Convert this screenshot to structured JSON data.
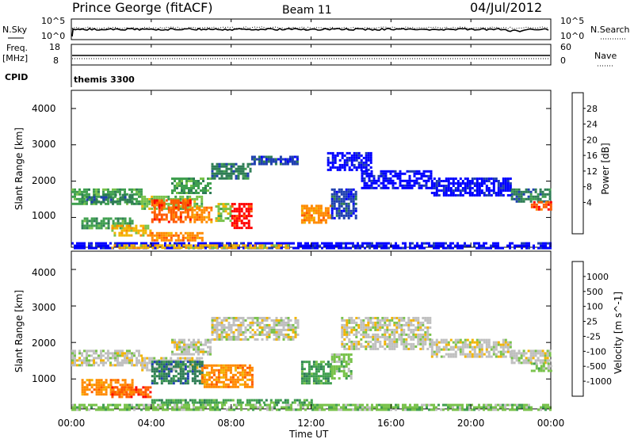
{
  "header": {
    "station": "Prince George (fitACF)",
    "beam": "Beam 11",
    "date": "04/Jul/2012"
  },
  "panels": {
    "nsky": {
      "left_label": "N.Sky",
      "left_ticks": [
        "10^5",
        "10^0"
      ],
      "right_label": "N.Search",
      "right_ticks": [
        "10^5",
        "10^0"
      ]
    },
    "freq": {
      "left_label_1": "Freq.",
      "left_label_2": "[MHz]",
      "left_ticks": [
        "18",
        "8"
      ],
      "right_label": "Nave",
      "right_ticks": [
        "60",
        "0"
      ]
    },
    "cpid": {
      "label": "CPID",
      "value": "themis 3300"
    }
  },
  "colorbars": {
    "power": {
      "title": "Power [dB]",
      "ticks": [
        "28",
        "24",
        "20",
        "16",
        "12",
        "8",
        "4"
      ],
      "colors": [
        "#0000ff",
        "#1f3fb0",
        "#2e7d55",
        "#3f9f4f",
        "#78c24a",
        "#f2b400",
        "#ff8a00",
        "#ff5a00",
        "#ff0000"
      ]
    },
    "velocity": {
      "title": "Velocity [m s^-1]",
      "ticks": [
        "1000",
        "500",
        "100",
        "25",
        "-25",
        "-100",
        "-500",
        "-1000"
      ],
      "colors": [
        "#1f3fb0",
        "#2e7d55",
        "#3f9f4f",
        "#78c24a",
        "#bfbfbf",
        "#f2b400",
        "#ff8a00",
        "#ff5a00",
        "#ff0000"
      ]
    }
  },
  "chart_data": [
    {
      "type": "heatmap",
      "name": "power",
      "ylabel": "Slant Range [km]",
      "yticks": [
        "4000",
        "3000",
        "2000",
        "1000"
      ],
      "ylim": [
        180,
        4500
      ],
      "xlim": [
        0,
        24
      ],
      "bands": [
        {
          "x0": 0.0,
          "x1": 3.5,
          "r0": 1350,
          "r1": 1800,
          "c": 3
        },
        {
          "x0": 0.5,
          "x1": 3.0,
          "r0": 1450,
          "r1": 1650,
          "c": 2
        },
        {
          "x0": 3.5,
          "x1": 6.5,
          "r0": 1250,
          "r1": 1600,
          "c": 4
        },
        {
          "x0": 0.5,
          "x1": 3.0,
          "r0": 700,
          "r1": 1000,
          "c": 3
        },
        {
          "x0": 2.0,
          "x1": 4.0,
          "r0": 500,
          "r1": 800,
          "c": 5
        },
        {
          "x0": 4.0,
          "x1": 6.5,
          "r0": 350,
          "r1": 600,
          "c": 6
        },
        {
          "x0": 4.0,
          "x1": 6.0,
          "r0": 850,
          "r1": 1500,
          "c": 7
        },
        {
          "x0": 6.0,
          "x1": 7.0,
          "r0": 850,
          "r1": 1300,
          "c": 6
        },
        {
          "x0": 7.2,
          "x1": 8.0,
          "r0": 900,
          "r1": 1400,
          "c": 4
        },
        {
          "x0": 8.0,
          "x1": 9.0,
          "r0": 700,
          "r1": 1400,
          "c": 8
        },
        {
          "x0": 5.0,
          "x1": 7.0,
          "r0": 1700,
          "r1": 2100,
          "c": 3
        },
        {
          "x0": 7.0,
          "x1": 9.0,
          "r0": 2100,
          "r1": 2500,
          "c": 2
        },
        {
          "x0": 9.0,
          "x1": 11.3,
          "r0": 2450,
          "r1": 2700,
          "c": 1
        },
        {
          "x0": 11.5,
          "x1": 13.0,
          "r0": 850,
          "r1": 1350,
          "c": 6
        },
        {
          "x0": 13.0,
          "x1": 14.2,
          "r0": 1000,
          "r1": 1800,
          "c": 1
        },
        {
          "x0": 12.8,
          "x1": 15.0,
          "r0": 2300,
          "r1": 2800,
          "c": 0
        },
        {
          "x0": 14.5,
          "x1": 18.0,
          "r0": 1800,
          "r1": 2300,
          "c": 0
        },
        {
          "x0": 18.0,
          "x1": 22.0,
          "r0": 1600,
          "r1": 2100,
          "c": 0
        },
        {
          "x0": 22.0,
          "x1": 24.0,
          "r0": 1450,
          "r1": 1800,
          "c": 2
        },
        {
          "x0": 23.0,
          "x1": 24.0,
          "r0": 1200,
          "r1": 1450,
          "c": 7
        },
        {
          "x0": 0.0,
          "x1": 24.0,
          "r0": 180,
          "r1": 320,
          "c": 0
        },
        {
          "x0": 2.0,
          "x1": 11.0,
          "r0": 180,
          "r1": 260,
          "c": 5
        }
      ]
    },
    {
      "type": "heatmap",
      "name": "velocity",
      "ylabel": "Slant Range [km]",
      "yticks": [
        "4000",
        "3000",
        "2000",
        "1000"
      ],
      "ylim": [
        180,
        4500
      ],
      "xlim": [
        0,
        24
      ],
      "xticks": [
        "00:00",
        "04:00",
        "08:00",
        "12:00",
        "16:00",
        "20:00",
        "00:00"
      ],
      "xlabel": "Time UT",
      "bands": [
        {
          "x0": 0.0,
          "x1": 3.5,
          "r0": 1350,
          "r1": 1800,
          "c": 4
        },
        {
          "x0": 3.5,
          "x1": 6.5,
          "r0": 1250,
          "r1": 1600,
          "c": 4
        },
        {
          "x0": 0.5,
          "x1": 3.0,
          "r0": 600,
          "r1": 1000,
          "c": 6
        },
        {
          "x0": 2.0,
          "x1": 4.0,
          "r0": 500,
          "r1": 800,
          "c": 7
        },
        {
          "x0": 4.0,
          "x1": 6.5,
          "r0": 850,
          "r1": 1500,
          "c": 1
        },
        {
          "x0": 5.0,
          "x1": 7.0,
          "r0": 1700,
          "r1": 2100,
          "c": 4
        },
        {
          "x0": 7.0,
          "x1": 11.3,
          "r0": 2100,
          "r1": 2700,
          "c": 4
        },
        {
          "x0": 6.5,
          "x1": 9.0,
          "r0": 800,
          "r1": 1400,
          "c": 6
        },
        {
          "x0": 11.5,
          "x1": 13.0,
          "r0": 850,
          "r1": 1500,
          "c": 2
        },
        {
          "x0": 13.0,
          "x1": 14.0,
          "r0": 1000,
          "r1": 1700,
          "c": 3
        },
        {
          "x0": 13.5,
          "x1": 18.0,
          "r0": 1800,
          "r1": 2700,
          "c": 4
        },
        {
          "x0": 18.0,
          "x1": 22.0,
          "r0": 1600,
          "r1": 2100,
          "c": 4
        },
        {
          "x0": 22.0,
          "x1": 24.0,
          "r0": 1450,
          "r1": 1800,
          "c": 4
        },
        {
          "x0": 23.0,
          "x1": 24.0,
          "r0": 1200,
          "r1": 1450,
          "c": 3
        },
        {
          "x0": 0.0,
          "x1": 24.0,
          "r0": 180,
          "r1": 320,
          "c": 3
        },
        {
          "x0": 4.0,
          "x1": 12.0,
          "r0": 320,
          "r1": 450,
          "c": 2
        }
      ]
    }
  ]
}
